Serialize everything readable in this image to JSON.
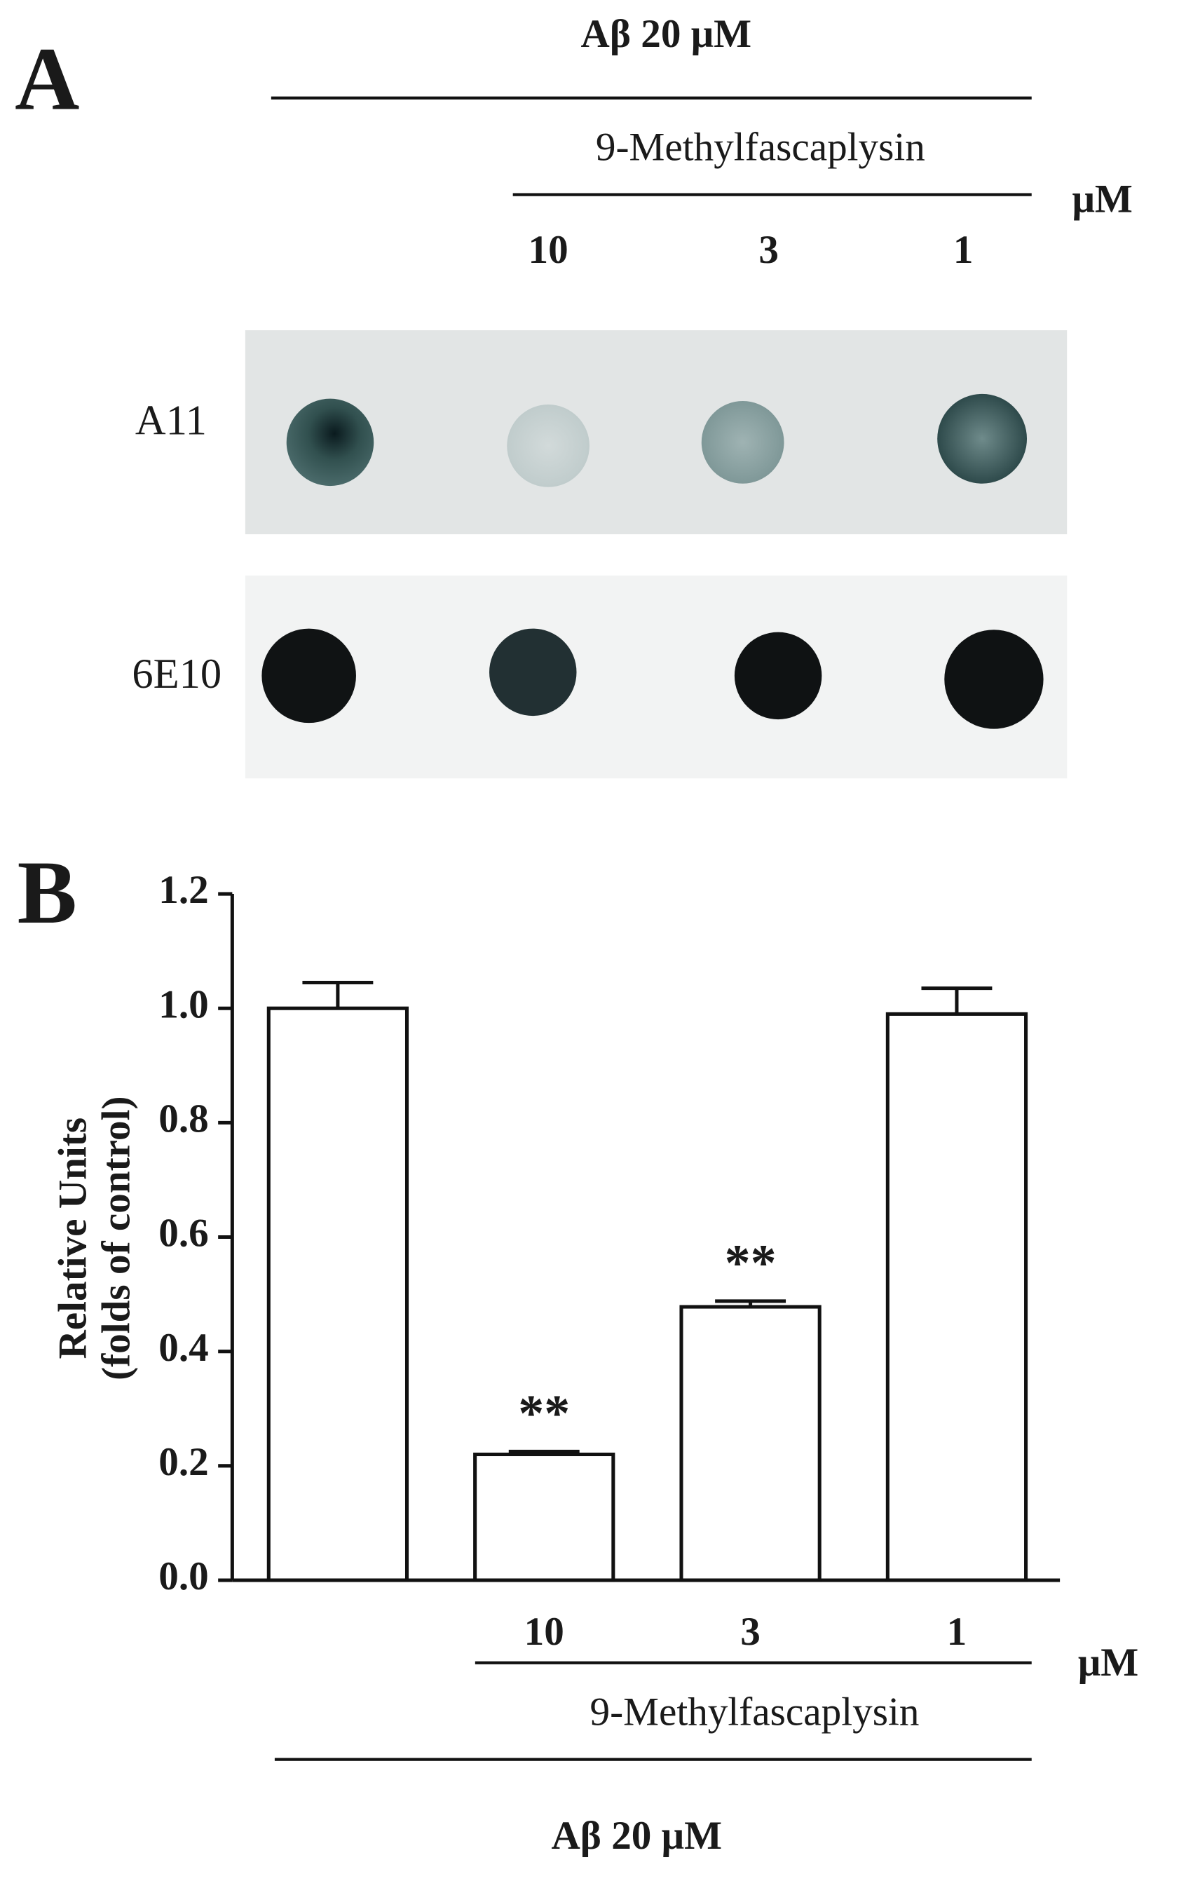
{
  "panel_a": {
    "label": "A",
    "treatment": "Aβ 20 μM",
    "compound": "9-Methylfascaplysin",
    "unit": "μM",
    "doses": [
      "10",
      "3",
      "1"
    ],
    "rows": [
      "A11",
      "6E10"
    ]
  },
  "chart_data": {
    "type": "bar",
    "panel_label": "B",
    "ylabel": [
      "Relative Units",
      "(folds of control)"
    ],
    "categories": [
      null,
      "10",
      "3",
      "1"
    ],
    "values": [
      1.0,
      0.22,
      0.478,
      0.99
    ],
    "errors": [
      0.045,
      0.005,
      0.01,
      0.045
    ],
    "annotations": [
      null,
      "**",
      "**",
      null
    ],
    "color": "#ffffff",
    "ylim": [
      0,
      1.2
    ],
    "yticks": [
      {
        "value": 0,
        "label": "0.0"
      },
      0.2,
      0.4,
      0.6,
      0.8,
      {
        "value": 1,
        "label": "1.0"
      },
      1.2
    ],
    "unit": "μM",
    "compound": "9-Methylfascaplysin",
    "treatment": "Aβ 20 μM"
  }
}
